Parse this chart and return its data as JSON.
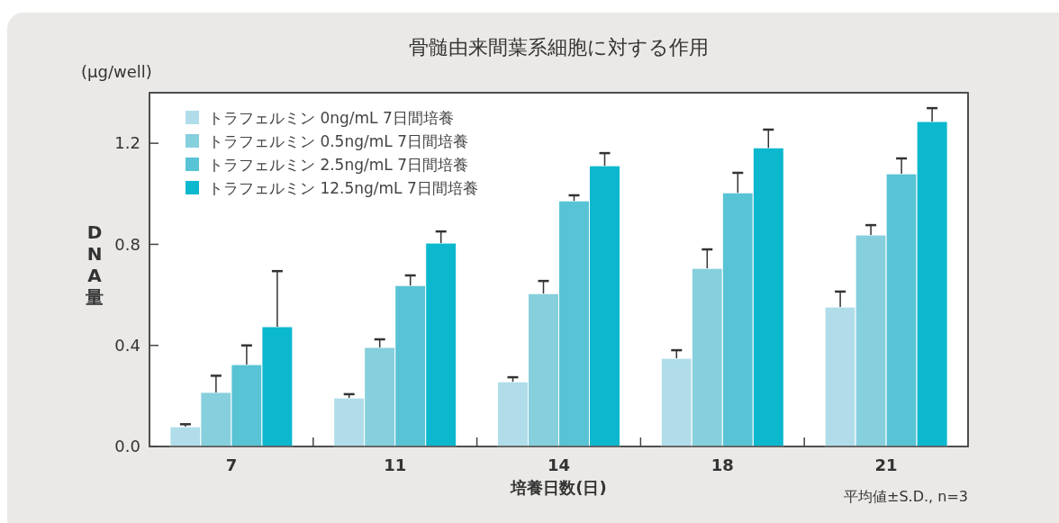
{
  "chart_data": {
    "type": "bar",
    "title": "骨髄由来間葉系細胞に対する作用",
    "xlabel": "培養日数(日)",
    "ylabel": "DNA量",
    "annotations": [
      "(μg/well)",
      "平均値±S.D., n=3"
    ],
    "categories": [
      "7",
      "11",
      "14",
      "18",
      "21"
    ],
    "series": [
      {
        "name": "トラフェルミン 0ng/mL 7日間培養",
        "color": "#b0dde9",
        "values": [
          0.078,
          0.192,
          0.256,
          0.349,
          0.552
        ],
        "errors": [
          [
            0.078,
            0.088
          ],
          [
            0.192,
            0.207
          ],
          [
            0.256,
            0.274
          ],
          [
            0.349,
            0.381
          ],
          [
            0.552,
            0.613
          ]
        ]
      },
      {
        "name": "トラフェルミン 0.5ng/mL 7日間培養",
        "color": "#86cfdd",
        "values": [
          0.214,
          0.392,
          0.605,
          0.705,
          0.837
        ],
        "errors": [
          [
            0.214,
            0.28
          ],
          [
            0.392,
            0.424
          ],
          [
            0.605,
            0.655
          ],
          [
            0.705,
            0.78
          ],
          [
            0.837,
            0.876
          ]
        ]
      },
      {
        "name": "トラフェルミン 2.5ng/mL 7日間培養",
        "color": "#58c3d5",
        "values": [
          0.324,
          0.637,
          0.972,
          1.004,
          1.079
        ],
        "errors": [
          [
            0.324,
            0.4
          ],
          [
            0.637,
            0.677
          ],
          [
            0.972,
            0.994
          ],
          [
            1.004,
            1.083
          ],
          [
            1.079,
            1.14
          ]
        ]
      },
      {
        "name": "トラフェルミン 12.5ng/mL 7日間培養",
        "color": "#0bb8ce",
        "values": [
          0.474,
          0.805,
          1.111,
          1.182,
          1.286
        ],
        "errors": [
          [
            0.474,
            0.694
          ],
          [
            0.805,
            0.851
          ],
          [
            1.111,
            1.161
          ],
          [
            1.182,
            1.254
          ],
          [
            1.286,
            1.339
          ]
        ]
      }
    ],
    "ylim": [
      0,
      1.4
    ],
    "yticks": [
      {
        "value": 0,
        "label": "0.0"
      },
      0.4,
      0.8,
      1.2
    ],
    "grid": false,
    "legend": "top left"
  }
}
